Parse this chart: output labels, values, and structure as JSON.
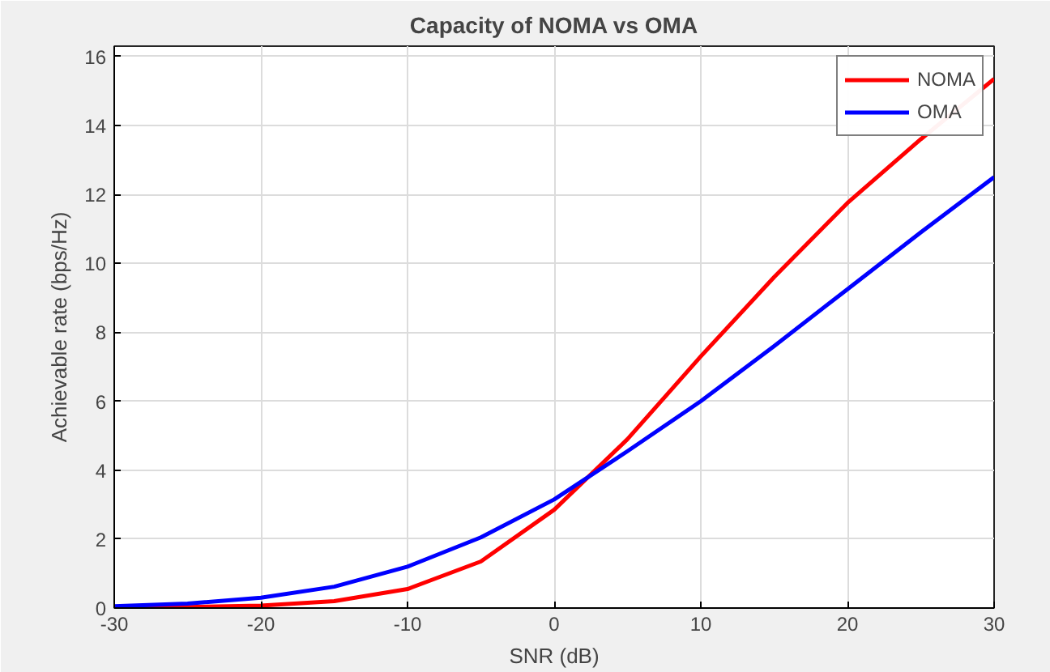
{
  "chart_data": {
    "type": "line",
    "title": "Capacity of NOMA vs OMA",
    "xlabel": "SNR (dB)",
    "ylabel": "Achievable rate (bps/Hz)",
    "x": [
      -30,
      -25,
      -20,
      -15,
      -10,
      -5,
      0,
      5,
      10,
      15,
      20,
      25,
      30
    ],
    "series": [
      {
        "name": "NOMA",
        "color": "#ff0000",
        "values": [
          0.01,
          0.03,
          0.07,
          0.2,
          0.55,
          1.35,
          2.85,
          4.9,
          7.3,
          9.6,
          11.75,
          13.6,
          15.35
        ]
      },
      {
        "name": "OMA",
        "color": "#0000ff",
        "values": [
          0.05,
          0.13,
          0.3,
          0.62,
          1.2,
          2.05,
          3.15,
          4.55,
          6.0,
          7.6,
          9.25,
          10.9,
          12.5
        ]
      }
    ],
    "xlim": [
      -30,
      30
    ],
    "ylim": [
      0,
      16.3
    ],
    "xticks": [
      -30,
      -20,
      -10,
      0,
      10,
      20,
      30
    ],
    "yticks": [
      0,
      2,
      4,
      6,
      8,
      10,
      12,
      14,
      16
    ],
    "grid": true,
    "legend": "top right",
    "marker": "none",
    "line_style": "solid"
  }
}
